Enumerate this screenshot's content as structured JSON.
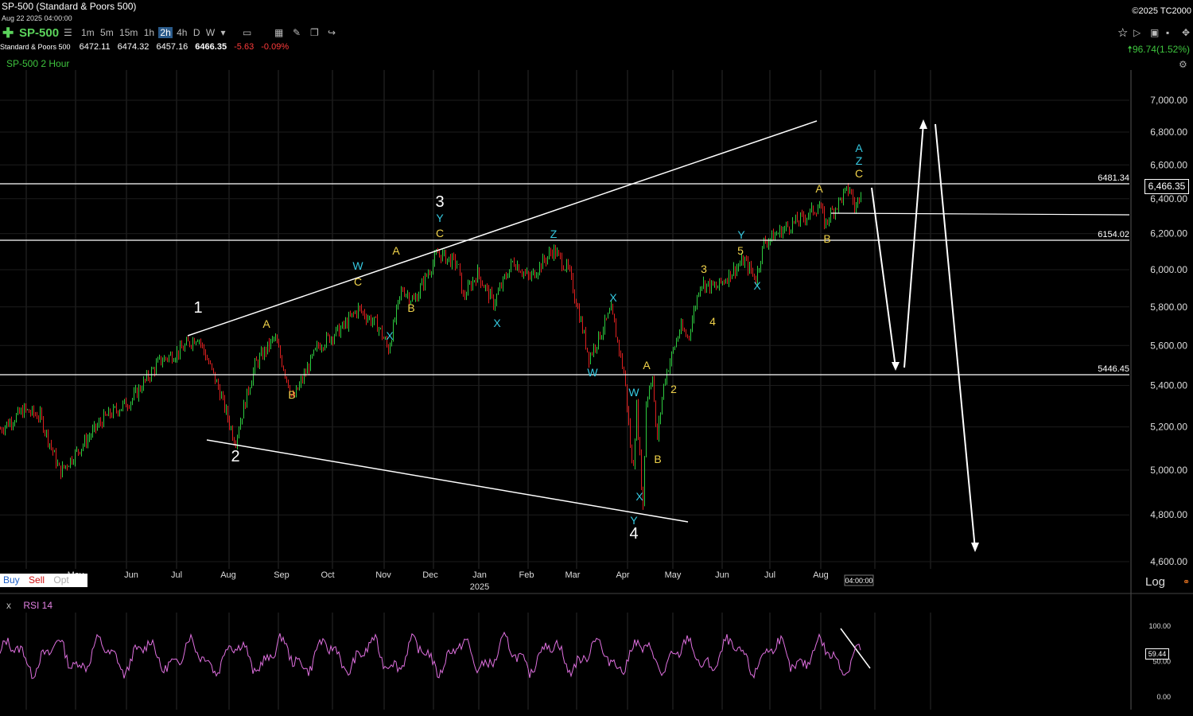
{
  "window": {
    "title": "SP-500 (Standard & Poors 500)",
    "date": "Aug 22 2025 04:00:00",
    "copyright": "©2025 TC2000"
  },
  "toolbar": {
    "symbol": "SP-500",
    "timeframes": [
      "1m",
      "5m",
      "15m",
      "1h",
      "2h",
      "4h",
      "D",
      "W"
    ],
    "active_timeframe": "2h"
  },
  "quote": {
    "name": "Standard & Poors 500",
    "open": "6472.11",
    "high": "6474.32",
    "low": "6457.16",
    "last": "6466.35",
    "change": "-5.63",
    "change_pct": "-0.09%",
    "right_change": "96.74(1.52%)"
  },
  "chart_label": "SP-500 2 Hour",
  "price_axis": {
    "ticks": [
      "7,000.00",
      "6,800.00",
      "6,600.00",
      "6,400.00",
      "6,200.00",
      "6,000.00",
      "5,800.00",
      "5,600.00",
      "5,400.00",
      "5,200.00",
      "5,000.00",
      "4,800.00",
      "4,600.00"
    ],
    "current_price": "6,466.35",
    "scale_label": "Log"
  },
  "levels": [
    "6481.34",
    "6154.02",
    "5446.45"
  ],
  "time_axis": {
    "months": [
      "May",
      "Jun",
      "Jul",
      "Aug",
      "Sep",
      "Oct",
      "Nov",
      "Dec",
      "Jan",
      "Feb",
      "Mar",
      "Apr",
      "May",
      "Jun",
      "Jul",
      "Aug"
    ],
    "year": "2025",
    "time_marker": "04:00:00"
  },
  "order_bar": {
    "buy": "Buy",
    "sell": "Sell",
    "opt": "Opt"
  },
  "rsi": {
    "close": "x",
    "label": "RSI 14",
    "ticks": [
      "100.00",
      "50.00",
      "0.00"
    ],
    "value": "59.44"
  },
  "wave_labels": [
    "1",
    "2",
    "3",
    "4",
    "5",
    "A",
    "B",
    "C",
    "W",
    "X",
    "Y",
    "Z"
  ],
  "colors": {
    "up": "#2ecc40",
    "down": "#e02020",
    "white_label": "#ffffff",
    "cyan": "#35c8e0",
    "yellow": "#f0d24a",
    "rsi": "#e070e0"
  }
}
